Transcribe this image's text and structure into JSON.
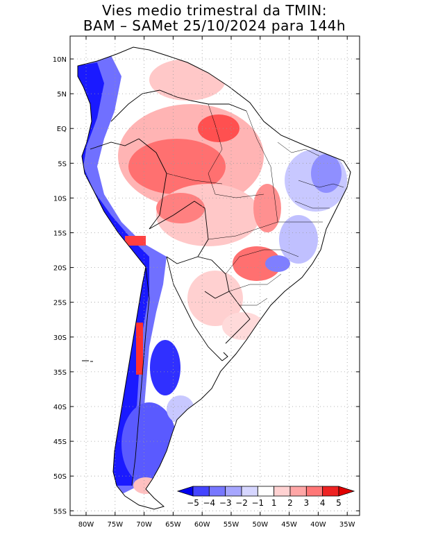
{
  "title_line1": "Vies medio trimestral da TMIN:",
  "title_line2": "BAM – SAMet 25/10/2024  para 144h",
  "lat_labels": [
    "10N",
    "5N",
    "EQ",
    "5S",
    "10S",
    "15S",
    "20S",
    "25S",
    "30S",
    "35S",
    "40S",
    "45S",
    "50S",
    "55S"
  ],
  "lon_labels": [
    "80W",
    "75W",
    "70W",
    "65W",
    "60W",
    "55W",
    "50W",
    "45W",
    "40W",
    "35W"
  ],
  "colorbar": {
    "labels": [
      "−5",
      "−4",
      "−3",
      "−2",
      "−1",
      "1",
      "2",
      "3",
      "4",
      "5"
    ],
    "colors": [
      "#0000ee",
      "#4444ff",
      "#7777ff",
      "#a6a6ff",
      "#d6d6ff",
      "#ffffff",
      "#ffd2d2",
      "#ffa6a6",
      "#ff7777",
      "#ee2222",
      "#e00000"
    ]
  },
  "colors": {
    "land": "#ffffff",
    "strong_cold": "#1a1aff",
    "cold": "#6f6fff",
    "light_cold": "#c8c8ff",
    "warm": "#ffb4b4",
    "strong_warm": "#ff7070",
    "very_warm": "#ff3030",
    "border": "#000000",
    "grid": "#9a9a9a"
  }
}
